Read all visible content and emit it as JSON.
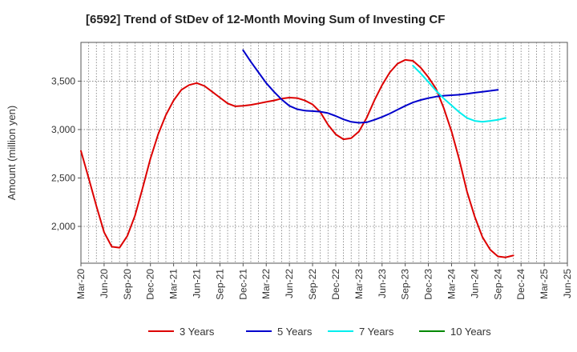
{
  "chart_data": {
    "type": "line",
    "title": "[6592]  Trend of StDev of 12-Month Moving Sum of Investing CF",
    "xlabel": "",
    "ylabel": "Amount (million yen)",
    "ylim": [
      1620,
      3900
    ],
    "yticks": [
      2000,
      2500,
      3000,
      3500
    ],
    "ytick_labels": [
      "2,000",
      "2,500",
      "3,000",
      "3,500"
    ],
    "x_tick_labels": [
      "Mar-20",
      "Jun-20",
      "Sep-20",
      "Dec-20",
      "Mar-21",
      "Jun-21",
      "Sep-21",
      "Dec-21",
      "Mar-22",
      "Jun-22",
      "Sep-22",
      "Dec-22",
      "Mar-23",
      "Jun-23",
      "Sep-23",
      "Dec-23",
      "Mar-24",
      "Jun-24",
      "Sep-24",
      "Dec-24",
      "Mar-25",
      "Jun-25"
    ],
    "grid": true,
    "legend_position": "bottom",
    "series": [
      {
        "name": "3 Years",
        "color": "#dd0000",
        "values": [
          2780,
          2500,
          2210,
          1940,
          1790,
          1780,
          1900,
          2110,
          2400,
          2700,
          2950,
          3150,
          3300,
          3410,
          3460,
          3480,
          3450,
          3390,
          3330,
          3270,
          3240,
          3245,
          3255,
          3270,
          3285,
          3300,
          3320,
          3330,
          3325,
          3300,
          3260,
          3180,
          3050,
          2950,
          2900,
          2910,
          2980,
          3120,
          3300,
          3460,
          3590,
          3680,
          3720,
          3710,
          3640,
          3540,
          3420,
          3220,
          2980,
          2690,
          2360,
          2100,
          1890,
          1760,
          1690,
          1680,
          1700
        ]
      },
      {
        "name": "5 Years",
        "color": "#0000cc",
        "values": [
          null,
          null,
          null,
          null,
          null,
          null,
          null,
          null,
          null,
          null,
          null,
          null,
          null,
          null,
          null,
          null,
          null,
          null,
          null,
          null,
          null,
          3820,
          3700,
          3590,
          3480,
          3390,
          3310,
          3245,
          3210,
          3195,
          3190,
          3185,
          3170,
          3140,
          3105,
          3080,
          3070,
          3075,
          3100,
          3130,
          3165,
          3205,
          3245,
          3280,
          3305,
          3325,
          3340,
          3350,
          3355,
          3360,
          3370,
          3380,
          3390,
          3400,
          3410,
          null,
          null
        ]
      },
      {
        "name": "7 Years",
        "color": "#00eeee",
        "values": [
          null,
          null,
          null,
          null,
          null,
          null,
          null,
          null,
          null,
          null,
          null,
          null,
          null,
          null,
          null,
          null,
          null,
          null,
          null,
          null,
          null,
          null,
          null,
          null,
          null,
          null,
          null,
          null,
          null,
          null,
          null,
          null,
          null,
          null,
          null,
          null,
          null,
          null,
          null,
          null,
          null,
          null,
          null,
          3660,
          3580,
          3490,
          3400,
          3320,
          3250,
          3180,
          3120,
          3090,
          3080,
          3090,
          3100,
          3120,
          null
        ]
      },
      {
        "name": "10 Years",
        "color": "#008800",
        "values": []
      }
    ]
  }
}
